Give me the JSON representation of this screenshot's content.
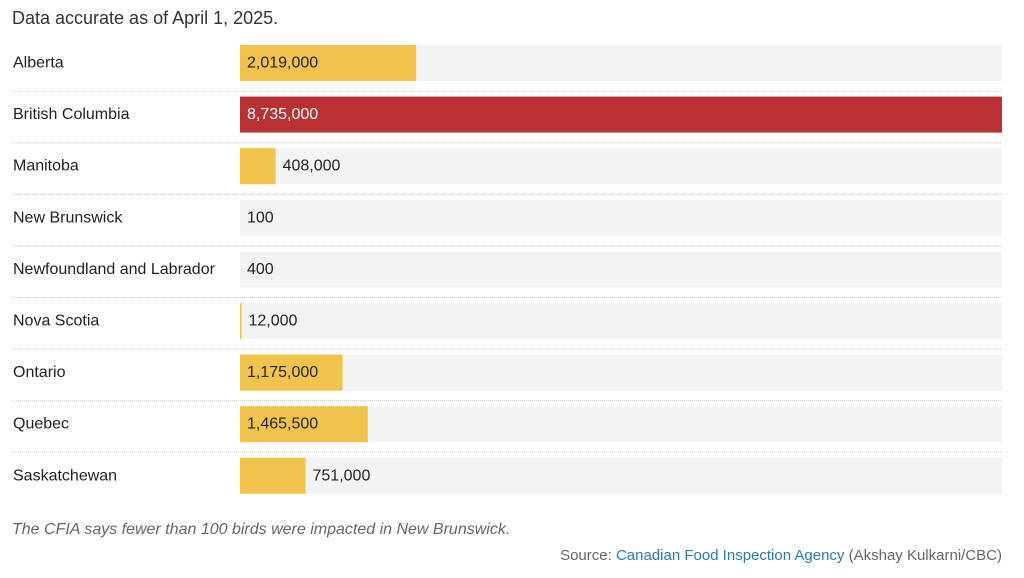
{
  "subtitle": "Data accurate as of April 1, 2025.",
  "note": "The CFIA says fewer than 100 birds were impacted in New Brunswick.",
  "source": {
    "prefix": "Source:",
    "link_text": "Canadian Food Inspection Agency",
    "credit": "(Akshay Kulkarni/CBC)"
  },
  "colors": {
    "bar_default": "#f0c44c",
    "bar_highlight": "#b83233",
    "track": "#f3f3f3",
    "separator": "#cccccc",
    "label_on_bar_default": "#222222",
    "label_on_bar_highlight": "#ffffff",
    "link": "#2a7ab8"
  },
  "chart_data": {
    "type": "bar",
    "orientation": "horizontal",
    "categories": [
      "Alberta",
      "British Columbia",
      "Manitoba",
      "New Brunswick",
      "Newfoundland and Labrador",
      "Nova Scotia",
      "Ontario",
      "Quebec",
      "Saskatchewan"
    ],
    "values": [
      2019000,
      8735000,
      408000,
      100,
      400,
      12000,
      1175000,
      1465500,
      751000
    ],
    "value_labels": [
      "2,019,000",
      "8,735,000",
      "408,000",
      "100",
      "400",
      "12,000",
      "1,175,000",
      "1,465,500",
      "751,000"
    ],
    "highlight": [
      "British Columbia"
    ],
    "xlim": [
      0,
      8735000
    ],
    "grid": false,
    "title": "",
    "xlabel": "",
    "ylabel": ""
  }
}
